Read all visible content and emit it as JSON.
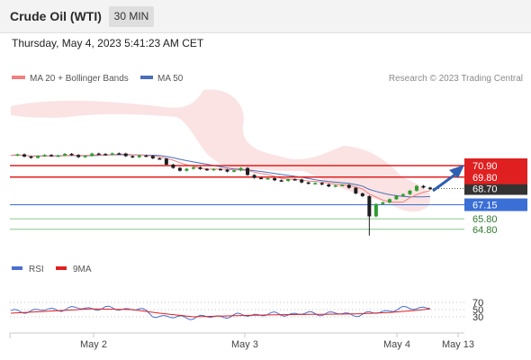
{
  "header": {
    "title": "Crude Oil (WTI)",
    "timeframe": "30 MIN"
  },
  "timestamp": "Thursday, May 4, 2023 5:41:23 AM CET",
  "legend": {
    "ma20_label": "MA 20 + Bollinger Bands",
    "ma50_label": "MA 50"
  },
  "copyright": "Research © 2023 Trading Central",
  "colors": {
    "up": "#2e9d2e",
    "down": "#1e1e1e",
    "ma20": "#f08080",
    "bbands": "#fbe0e0",
    "ma50": "#4a6fb8",
    "resistance": "#e02020",
    "pivot": "#3a6fd6",
    "support": "#8cc68c",
    "current_label_bg": "#333333",
    "arrow": "#2f5fb0",
    "rsi": "#4a6fd0",
    "rsi_ma": "#e02020"
  },
  "price_levels": [
    {
      "value": "70.90",
      "type": "resistance"
    },
    {
      "value": "69.80",
      "type": "resistance"
    },
    {
      "value": "68.70",
      "type": "current"
    },
    {
      "value": "67.15",
      "type": "pivot"
    },
    {
      "value": "65.80",
      "type": "support"
    },
    {
      "value": "64.80",
      "type": "support"
    }
  ],
  "rsi_panel": {
    "rsi_label": "RSI",
    "ma_label": "9MA",
    "levels": [
      "70",
      "50",
      "30"
    ]
  },
  "x_axis": {
    "labels": [
      "May 2",
      "May 3",
      "May 4",
      "May 13"
    ]
  },
  "chart_data": {
    "type": "candlestick",
    "y_unit": "USD",
    "price_series": [
      [
        0,
        71.8
      ],
      [
        6,
        71.85
      ],
      [
        10,
        71.9
      ],
      [
        14,
        72.0
      ],
      [
        17,
        71.95
      ],
      [
        20,
        71.7
      ],
      [
        22,
        71.55
      ],
      [
        23,
        70.9
      ],
      [
        25,
        70.6
      ],
      [
        28,
        70.55
      ],
      [
        31,
        70.5
      ],
      [
        34,
        70.5
      ],
      [
        35,
        69.9
      ],
      [
        37,
        69.7
      ],
      [
        40,
        69.55
      ],
      [
        42,
        69.4
      ],
      [
        45,
        69.2
      ],
      [
        48,
        68.95
      ],
      [
        50,
        68.75
      ],
      [
        52,
        68.0
      ],
      [
        53,
        66.0
      ],
      [
        54,
        67.3
      ],
      [
        56,
        67.5
      ],
      [
        58,
        68.3
      ],
      [
        60,
        68.9
      ],
      [
        62,
        68.7
      ]
    ],
    "indicators": {
      "rsi": {
        "levels": [
          70,
          50,
          30
        ],
        "series": [
          [
            0,
            44
          ],
          [
            5,
            49
          ],
          [
            10,
            54
          ],
          [
            15,
            53
          ],
          [
            19,
            51
          ],
          [
            21,
            35
          ],
          [
            24,
            28
          ],
          [
            30,
            30
          ],
          [
            36,
            36
          ],
          [
            42,
            38
          ],
          [
            47,
            40
          ],
          [
            52,
            36
          ],
          [
            56,
            48
          ],
          [
            60,
            56
          ],
          [
            62,
            55
          ]
        ],
        "ma9_series": [
          [
            0,
            40
          ],
          [
            6,
            46
          ],
          [
            12,
            52
          ],
          [
            18,
            50
          ],
          [
            22,
            40
          ],
          [
            27,
            30
          ],
          [
            33,
            33
          ],
          [
            40,
            36
          ],
          [
            46,
            37
          ],
          [
            51,
            38
          ],
          [
            56,
            42
          ],
          [
            60,
            48
          ],
          [
            62,
            52
          ]
        ]
      }
    }
  }
}
